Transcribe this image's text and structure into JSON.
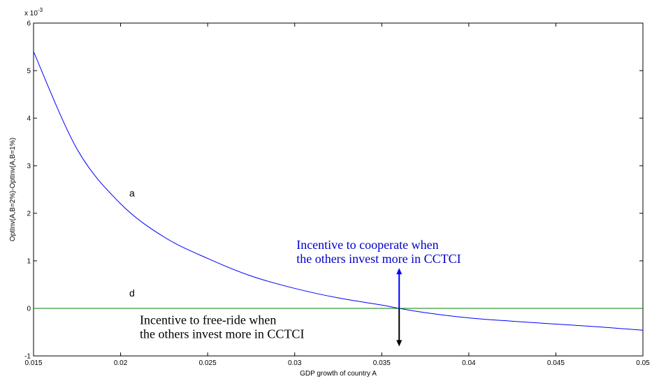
{
  "chart_data": {
    "type": "line",
    "title": "",
    "xlabel": "GDP growth of country A",
    "ylabel": "OptInv(A,B=2%)-OptInv(A,B=1%)",
    "y_exponent_label": "x 10",
    "y_exponent_power": "-3",
    "xlim": [
      0.015,
      0.05
    ],
    "ylim": [
      -1,
      6
    ],
    "y_scale_note": "values in units of 10^-3",
    "x_ticks": [
      "0.015",
      "0.02",
      "0.025",
      "0.03",
      "0.035",
      "0.04",
      "0.045",
      "0.05"
    ],
    "y_ticks": [
      "-1",
      "0",
      "1",
      "2",
      "3",
      "4",
      "5",
      "6"
    ],
    "grid": false,
    "series": [
      {
        "color": "#0000ff",
        "x": [
          0.015,
          0.0175,
          0.02,
          0.0225,
          0.025,
          0.0275,
          0.03,
          0.0325,
          0.035,
          0.036,
          0.0375,
          0.04,
          0.0425,
          0.045,
          0.0475,
          0.05
        ],
        "y": [
          5.4,
          3.35,
          2.2,
          1.5,
          1.05,
          0.68,
          0.42,
          0.22,
          0.07,
          0.0,
          -0.09,
          -0.2,
          -0.27,
          -0.33,
          -0.39,
          -0.46
        ]
      },
      {
        "color": "#008000",
        "x": [
          0.015,
          0.05
        ],
        "y": [
          0,
          0
        ]
      }
    ],
    "curve_labels": [
      {
        "text": "a",
        "x": 0.0205,
        "y": 2.35
      },
      {
        "text": "d",
        "x": 0.0205,
        "y": 0.25
      }
    ],
    "arrows": [
      {
        "x": 0.036,
        "y_from": 0,
        "y_to": 0.85,
        "color": "#0000ff"
      },
      {
        "x": 0.036,
        "y_from": 0,
        "y_to": -0.8,
        "color": "#000000"
      }
    ],
    "annotations": [
      {
        "lines": [
          "Incentive to cooperate when",
          "the others invest more in CCTCI"
        ],
        "color": "#0000cc",
        "x": 0.0301,
        "y": 1.25
      },
      {
        "lines": [
          "Incentive to free-ride when",
          "the others invest more in CCTCI"
        ],
        "color": "#000000",
        "x": 0.0211,
        "y": -0.33
      }
    ]
  }
}
